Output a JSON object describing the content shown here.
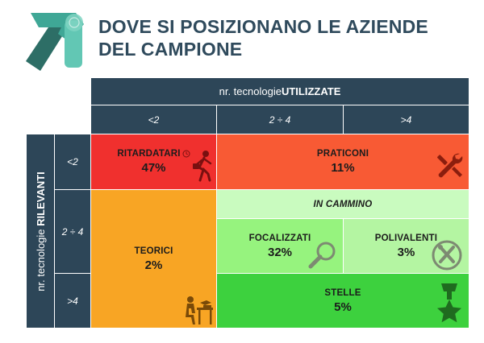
{
  "title": {
    "line1": "DOVE SI POSIZIONANO LE AZIENDE",
    "line2": "DEL CAMPIONE"
  },
  "top_header": {
    "prefix": "nr. tecnologie ",
    "emphasis": "UTILIZZATE"
  },
  "left_header": {
    "prefix": "nr. tecnologie ",
    "emphasis": "RILEVANTI"
  },
  "columns": [
    "<2",
    "2 ÷ 4",
    ">4"
  ],
  "rows": [
    "<2",
    "2 ÷ 4",
    ">4"
  ],
  "cells": {
    "ritardatari": {
      "label": "RITARDATARI",
      "value": "47%"
    },
    "praticoni": {
      "label": "PRATICONI",
      "value": "11%"
    },
    "in_cammino": {
      "label": "IN CAMMINO"
    },
    "teorici": {
      "label": "TEORICI",
      "value": "2%"
    },
    "focalizzati": {
      "label": "FOCALIZZATI",
      "value": "32%"
    },
    "polivalenti": {
      "label": "POLIVALENTI",
      "value": "3%"
    },
    "stelle": {
      "label": "STELLE",
      "value": "5%"
    }
  },
  "icons": {
    "logo": "arrow-logo-icon",
    "ritardatari": "late-runner-icon",
    "ritardatari_small": "clock-icon",
    "praticoni": "tools-icon",
    "teorici": "desk-reading-icon",
    "focalizzati": "magnifier-icon",
    "polivalenti": "wrench-screwdriver-icon",
    "stelle": "star-medal-icon"
  },
  "colors": {
    "header": "#2d4658",
    "title": "#2f4a5c",
    "ritardatari": "#f0302e",
    "praticoni": "#f85a34",
    "teorici": "#f8a524",
    "in_cammino": "#c9fbbf",
    "focalizzati": "#96f37e",
    "polivalenti": "#b4f5a2",
    "stelle": "#3dd13e"
  }
}
